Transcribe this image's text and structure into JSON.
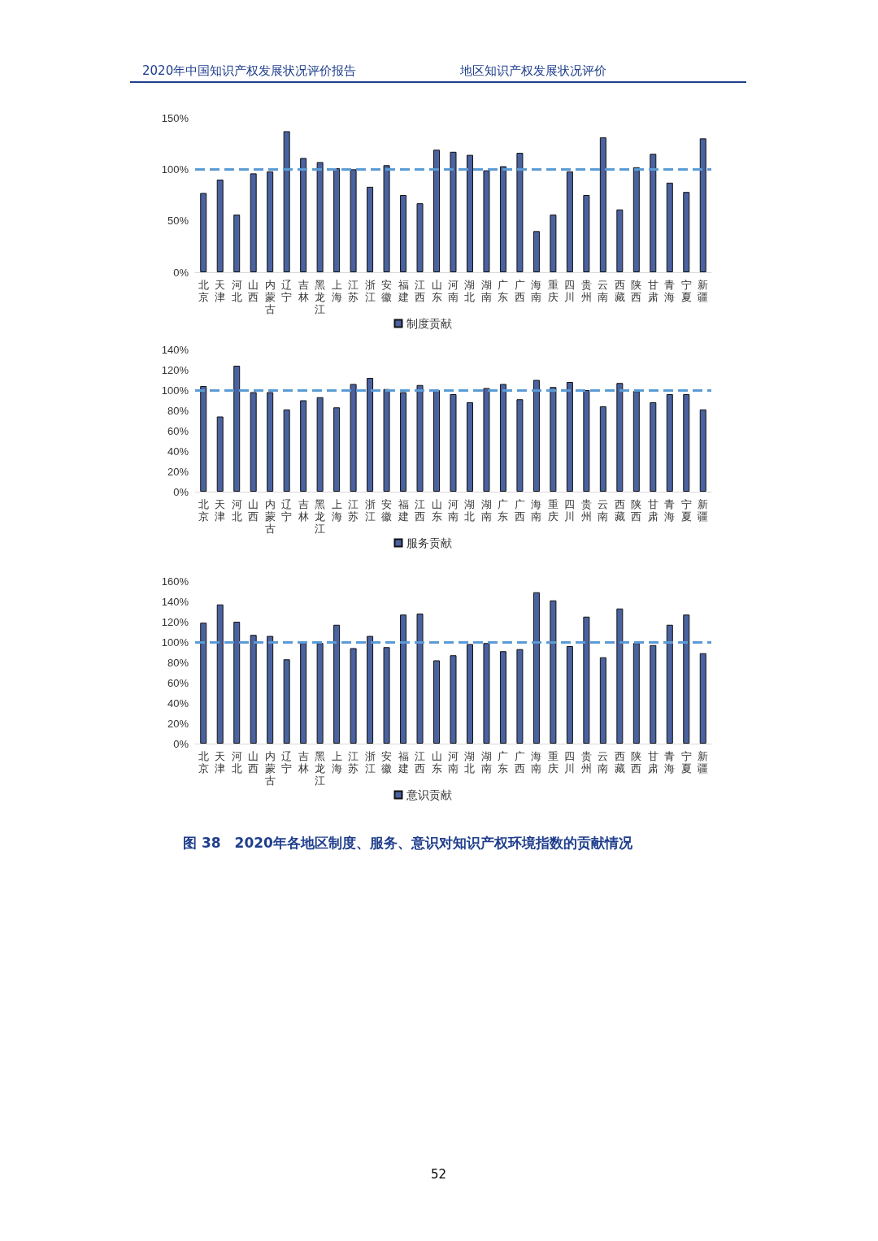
{
  "chart_data": [
    {
      "type": "bar",
      "annotations": [
        "2020年中国知识产权发展状况评价报告",
        "地区知识产权发展状况评价"
      ],
      "categories": [
        "北京",
        "天津",
        "河北",
        "山西",
        "内蒙古",
        "辽宁",
        "吉林",
        "黑龙江",
        "上海",
        "江苏",
        "浙江",
        "安徽",
        "福建",
        "江西",
        "山东",
        "河南",
        "湖北",
        "湖南",
        "广东",
        "广西",
        "海南",
        "重庆",
        "四川",
        "贵州",
        "云南",
        "西藏",
        "陕西",
        "甘肃",
        "青海",
        "宁夏",
        "新疆"
      ],
      "series": [
        {
          "name": "制度贡献",
          "color": "#4a62a0",
          "values": [
            77,
            90,
            56,
            96,
            98,
            137,
            111,
            107,
            101,
            100,
            83,
            104,
            75,
            67,
            119,
            117,
            114,
            99,
            103,
            116,
            40,
            56,
            98,
            75,
            131,
            61,
            102,
            115,
            87,
            78,
            130
          ]
        }
      ],
      "ylim": [
        0,
        150
      ],
      "yticks": [
        {
          "value": 0,
          "label": "0%"
        },
        {
          "value": 50,
          "label": "50%"
        },
        {
          "value": 100,
          "label": "100%"
        },
        {
          "value": 150,
          "label": "150%"
        }
      ],
      "ref_lines": [
        {
          "axis": "y",
          "value": 100,
          "color": "#5b9bd5",
          "line_style": "dashed"
        }
      ],
      "grid": false,
      "legend": "bottom"
    },
    {
      "type": "bar",
      "categories": [
        "北京",
        "天津",
        "河北",
        "山西",
        "内蒙古",
        "辽宁",
        "吉林",
        "黑龙江",
        "上海",
        "江苏",
        "浙江",
        "安徽",
        "福建",
        "江西",
        "山东",
        "河南",
        "湖北",
        "湖南",
        "广东",
        "广西",
        "海南",
        "重庆",
        "四川",
        "贵州",
        "云南",
        "西藏",
        "陕西",
        "甘肃",
        "青海",
        "宁夏",
        "新疆"
      ],
      "series": [
        {
          "name": "服务贡献",
          "color": "#4a62a0",
          "values": [
            104,
            74,
            124,
            98,
            98,
            81,
            90,
            93,
            83,
            106,
            112,
            101,
            98,
            105,
            100,
            96,
            88,
            102,
            106,
            91,
            110,
            103,
            108,
            100,
            84,
            107,
            99,
            88,
            96,
            96,
            81
          ]
        }
      ],
      "ylim": [
        0,
        140
      ],
      "yticks": [
        {
          "value": 0,
          "label": "0%"
        },
        {
          "value": 20,
          "label": "20%"
        },
        {
          "value": 40,
          "label": "40%"
        },
        {
          "value": 60,
          "label": "60%"
        },
        {
          "value": 80,
          "label": "80%"
        },
        {
          "value": 100,
          "label": "100%"
        },
        {
          "value": 120,
          "label": "120%"
        },
        {
          "value": 140,
          "label": "140%"
        }
      ],
      "ref_lines": [
        {
          "axis": "y",
          "value": 100,
          "color": "#5b9bd5",
          "line_style": "dashed"
        }
      ],
      "grid": false,
      "legend": "bottom"
    },
    {
      "type": "bar",
      "annotations": [
        "图 38　2020年各地区制度、服务、意识对知识产权环境指数的贡献情况",
        "52"
      ],
      "categories": [
        "北京",
        "天津",
        "河北",
        "山西",
        "内蒙古",
        "辽宁",
        "吉林",
        "黑龙江",
        "上海",
        "江苏",
        "浙江",
        "安徽",
        "福建",
        "江西",
        "山东",
        "河南",
        "湖北",
        "湖南",
        "广东",
        "广西",
        "海南",
        "重庆",
        "四川",
        "贵州",
        "云南",
        "西藏",
        "陕西",
        "甘肃",
        "青海",
        "宁夏",
        "新疆"
      ],
      "series": [
        {
          "name": "意识贡献",
          "color": "#4a62a0",
          "values": [
            119,
            137,
            120,
            107,
            106,
            83,
            99,
            99,
            117,
            94,
            106,
            95,
            127,
            128,
            82,
            87,
            98,
            99,
            91,
            93,
            149,
            141,
            96,
            125,
            85,
            133,
            99,
            97,
            117,
            127,
            89
          ]
        }
      ],
      "ylim": [
        0,
        160
      ],
      "yticks": [
        {
          "value": 0,
          "label": "0%"
        },
        {
          "value": 20,
          "label": "20%"
        },
        {
          "value": 40,
          "label": "40%"
        },
        {
          "value": 60,
          "label": "60%"
        },
        {
          "value": 80,
          "label": "80%"
        },
        {
          "value": 100,
          "label": "100%"
        },
        {
          "value": 120,
          "label": "120%"
        },
        {
          "value": 140,
          "label": "140%"
        },
        {
          "value": 160,
          "label": "160%"
        }
      ],
      "ref_lines": [
        {
          "axis": "y",
          "value": 100,
          "color": "#5b9bd5",
          "line_style": "dashed"
        }
      ],
      "grid": false,
      "legend": "bottom"
    }
  ]
}
